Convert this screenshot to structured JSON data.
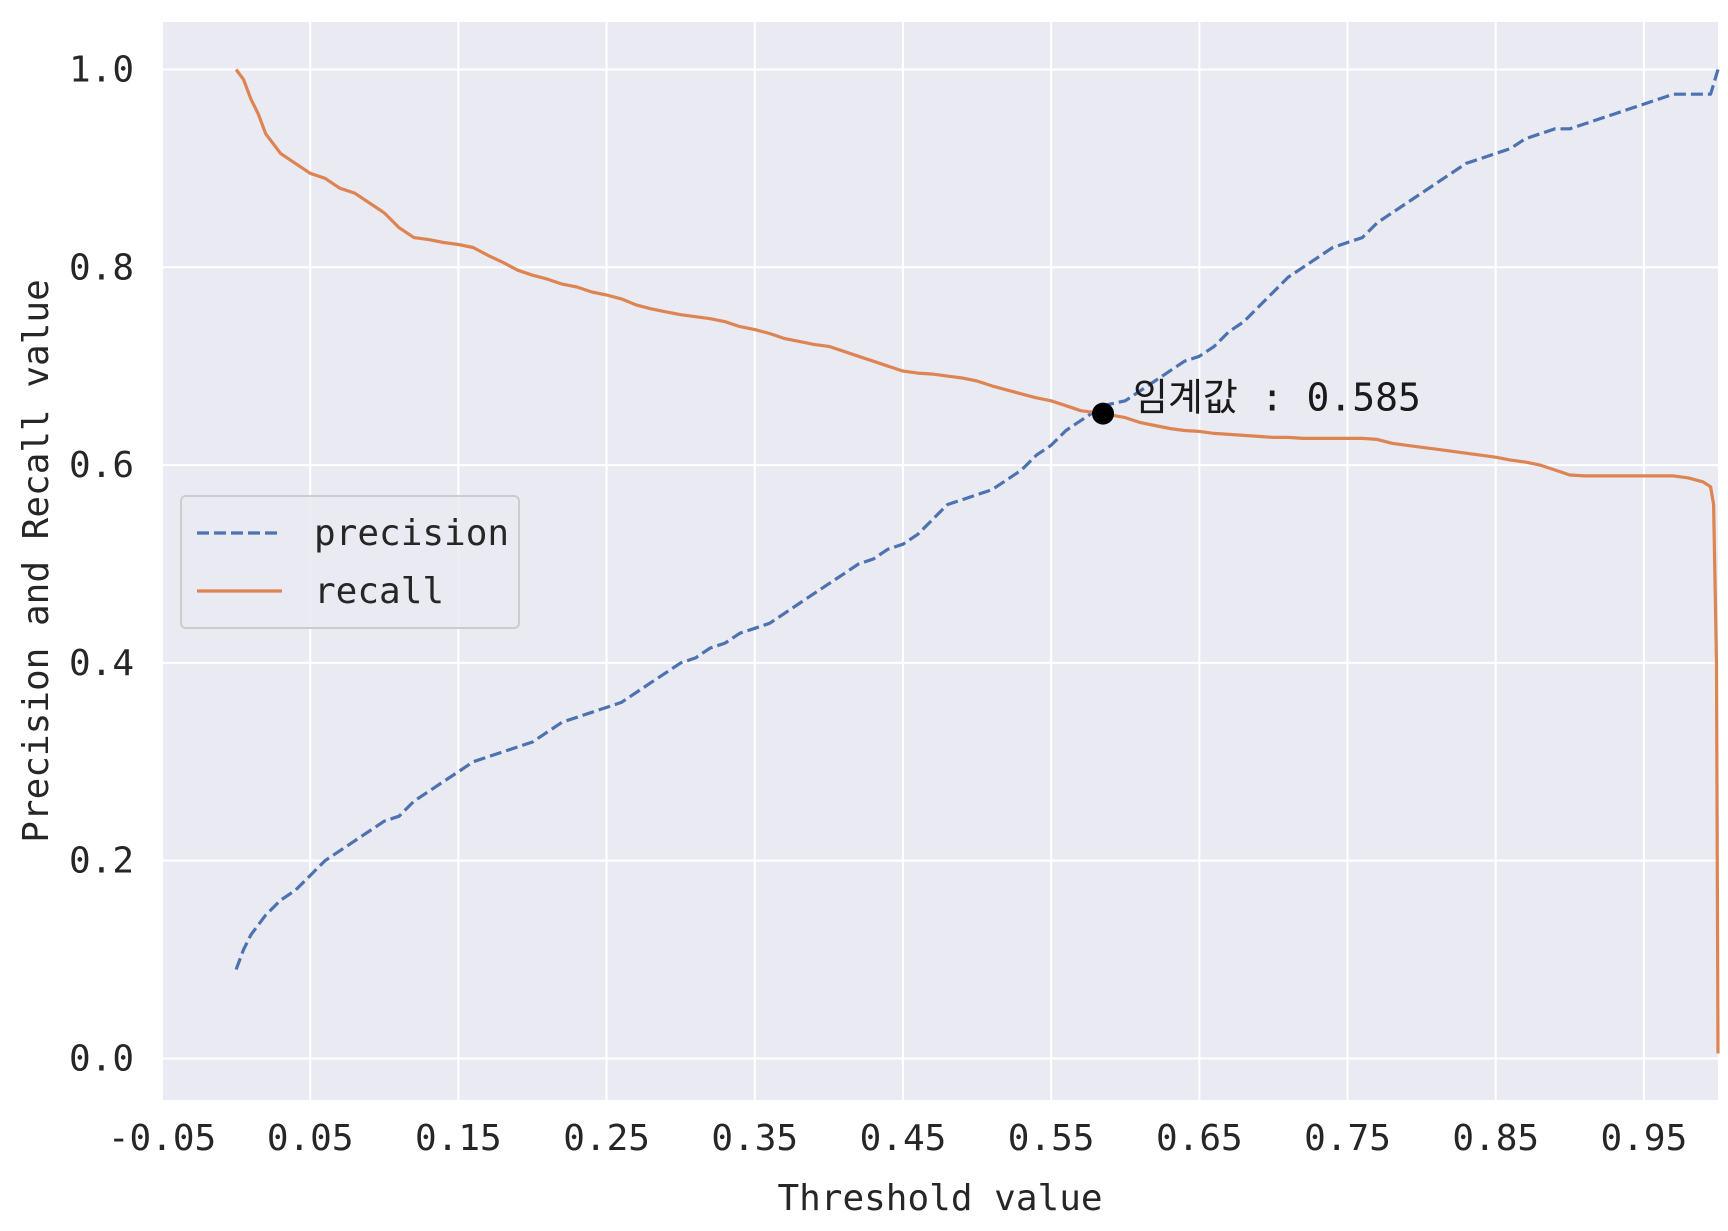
{
  "chart_data": {
    "type": "line",
    "title": "",
    "xlabel": "Threshold value",
    "ylabel": "Precision and Recall value",
    "xlim": [
      -0.05,
      1.0
    ],
    "ylim": [
      -0.042,
      1.048
    ],
    "x_ticks": [
      "-0.05",
      "0.05",
      "0.15",
      "0.25",
      "0.35",
      "0.45",
      "0.55",
      "0.65",
      "0.75",
      "0.85",
      "0.95"
    ],
    "y_ticks": [
      "0.0",
      "0.2",
      "0.4",
      "0.6",
      "0.8",
      "1.0"
    ],
    "grid": true,
    "legend_position": "center-left",
    "colors": {
      "background": "#eaeaf2",
      "grid": "#ffffff",
      "precision": "#4c72b0",
      "recall": "#dd8452",
      "marker": "#000000"
    },
    "series": [
      {
        "name": "precision",
        "style": "dashed",
        "x": [
          0.0,
          0.005,
          0.01,
          0.02,
          0.03,
          0.04,
          0.05,
          0.06,
          0.07,
          0.08,
          0.09,
          0.1,
          0.11,
          0.12,
          0.13,
          0.14,
          0.15,
          0.16,
          0.17,
          0.18,
          0.19,
          0.2,
          0.21,
          0.22,
          0.23,
          0.24,
          0.25,
          0.26,
          0.27,
          0.28,
          0.29,
          0.3,
          0.31,
          0.32,
          0.33,
          0.34,
          0.35,
          0.36,
          0.37,
          0.38,
          0.39,
          0.4,
          0.41,
          0.42,
          0.43,
          0.44,
          0.45,
          0.46,
          0.47,
          0.48,
          0.49,
          0.5,
          0.51,
          0.52,
          0.53,
          0.54,
          0.55,
          0.56,
          0.57,
          0.58,
          0.585,
          0.6,
          0.61,
          0.62,
          0.63,
          0.64,
          0.65,
          0.66,
          0.67,
          0.68,
          0.69,
          0.7,
          0.71,
          0.72,
          0.73,
          0.74,
          0.75,
          0.76,
          0.77,
          0.78,
          0.79,
          0.8,
          0.81,
          0.82,
          0.83,
          0.84,
          0.85,
          0.86,
          0.87,
          0.88,
          0.89,
          0.9,
          0.91,
          0.92,
          0.93,
          0.94,
          0.95,
          0.96,
          0.97,
          0.98,
          0.99,
          0.995,
          1.0
        ],
        "y": [
          0.09,
          0.11,
          0.125,
          0.145,
          0.16,
          0.17,
          0.185,
          0.2,
          0.21,
          0.22,
          0.23,
          0.24,
          0.245,
          0.26,
          0.27,
          0.28,
          0.29,
          0.3,
          0.305,
          0.31,
          0.315,
          0.32,
          0.33,
          0.34,
          0.345,
          0.35,
          0.355,
          0.36,
          0.37,
          0.38,
          0.39,
          0.4,
          0.405,
          0.415,
          0.42,
          0.43,
          0.435,
          0.44,
          0.45,
          0.46,
          0.47,
          0.48,
          0.49,
          0.5,
          0.505,
          0.515,
          0.52,
          0.53,
          0.545,
          0.56,
          0.565,
          0.57,
          0.575,
          0.585,
          0.595,
          0.61,
          0.62,
          0.635,
          0.645,
          0.655,
          0.66,
          0.665,
          0.675,
          0.685,
          0.695,
          0.705,
          0.71,
          0.72,
          0.735,
          0.745,
          0.76,
          0.775,
          0.79,
          0.8,
          0.81,
          0.82,
          0.825,
          0.83,
          0.845,
          0.855,
          0.865,
          0.875,
          0.885,
          0.895,
          0.905,
          0.91,
          0.915,
          0.92,
          0.93,
          0.935,
          0.94,
          0.94,
          0.945,
          0.95,
          0.955,
          0.96,
          0.965,
          0.97,
          0.975,
          0.975,
          0.975,
          0.975,
          1.0
        ]
      },
      {
        "name": "recall",
        "style": "solid",
        "x": [
          0.0,
          0.005,
          0.01,
          0.015,
          0.02,
          0.03,
          0.04,
          0.05,
          0.06,
          0.07,
          0.08,
          0.09,
          0.1,
          0.11,
          0.12,
          0.13,
          0.14,
          0.15,
          0.16,
          0.17,
          0.18,
          0.19,
          0.2,
          0.21,
          0.22,
          0.23,
          0.24,
          0.25,
          0.26,
          0.27,
          0.28,
          0.29,
          0.3,
          0.31,
          0.32,
          0.33,
          0.34,
          0.35,
          0.36,
          0.37,
          0.38,
          0.39,
          0.4,
          0.41,
          0.42,
          0.43,
          0.44,
          0.45,
          0.46,
          0.47,
          0.48,
          0.49,
          0.5,
          0.51,
          0.52,
          0.53,
          0.54,
          0.55,
          0.56,
          0.57,
          0.585,
          0.6,
          0.61,
          0.62,
          0.63,
          0.64,
          0.65,
          0.66,
          0.67,
          0.68,
          0.69,
          0.7,
          0.71,
          0.72,
          0.73,
          0.74,
          0.75,
          0.76,
          0.77,
          0.78,
          0.79,
          0.8,
          0.81,
          0.82,
          0.83,
          0.84,
          0.85,
          0.86,
          0.87,
          0.88,
          0.89,
          0.9,
          0.91,
          0.92,
          0.93,
          0.94,
          0.95,
          0.96,
          0.97,
          0.98,
          0.99,
          0.995,
          0.997,
          0.999,
          1.0
        ],
        "y": [
          1.0,
          0.99,
          0.97,
          0.955,
          0.935,
          0.915,
          0.905,
          0.895,
          0.89,
          0.88,
          0.875,
          0.865,
          0.855,
          0.84,
          0.83,
          0.828,
          0.825,
          0.823,
          0.82,
          0.812,
          0.805,
          0.797,
          0.792,
          0.788,
          0.783,
          0.78,
          0.775,
          0.772,
          0.768,
          0.762,
          0.758,
          0.755,
          0.752,
          0.75,
          0.748,
          0.745,
          0.74,
          0.737,
          0.733,
          0.728,
          0.725,
          0.722,
          0.72,
          0.715,
          0.71,
          0.705,
          0.7,
          0.695,
          0.693,
          0.692,
          0.69,
          0.688,
          0.685,
          0.68,
          0.676,
          0.672,
          0.668,
          0.665,
          0.66,
          0.655,
          0.652,
          0.648,
          0.643,
          0.64,
          0.637,
          0.635,
          0.634,
          0.632,
          0.631,
          0.63,
          0.629,
          0.628,
          0.628,
          0.627,
          0.627,
          0.627,
          0.627,
          0.627,
          0.626,
          0.622,
          0.62,
          0.618,
          0.616,
          0.614,
          0.612,
          0.61,
          0.608,
          0.605,
          0.603,
          0.6,
          0.595,
          0.59,
          0.589,
          0.589,
          0.589,
          0.589,
          0.589,
          0.589,
          0.589,
          0.587,
          0.583,
          0.578,
          0.56,
          0.4,
          0.005
        ]
      }
    ],
    "annotations": [
      {
        "text": "임계값 : 0.585",
        "x": 0.585,
        "y": 0.652
      }
    ]
  }
}
